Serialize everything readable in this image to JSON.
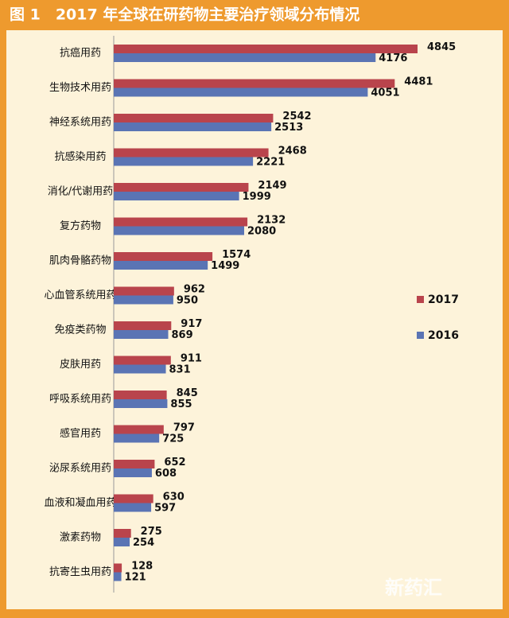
{
  "chart_data": {
    "type": "bar",
    "orientation": "horizontal",
    "title": "图 1　2017 年全球在研药物主要治疗领域分布情况",
    "categories": [
      "抗癌用药",
      "生物技术用药",
      "神经系统用药",
      "抗感染用药",
      "消化/代谢用药",
      "复方药物",
      "肌肉骨骼药物",
      "心血管系统用药",
      "免疫类药物",
      "皮肤用药",
      "呼吸系统用药",
      "感官用药",
      "泌尿系统用药",
      "血液和凝血用药",
      "激素药物",
      "抗寄生虫用药"
    ],
    "series": [
      {
        "name": "2017",
        "color": "#b9444c",
        "values": [
          4845,
          4481,
          2542,
          2468,
          2149,
          2132,
          1574,
          962,
          917,
          911,
          845,
          797,
          652,
          630,
          275,
          128
        ]
      },
      {
        "name": "2016",
        "color": "#5a74b4",
        "values": [
          4176,
          4051,
          2513,
          2221,
          1999,
          2080,
          1499,
          950,
          869,
          831,
          855,
          725,
          608,
          597,
          254,
          121
        ]
      }
    ],
    "legend": "right",
    "watermark": "新药汇"
  }
}
